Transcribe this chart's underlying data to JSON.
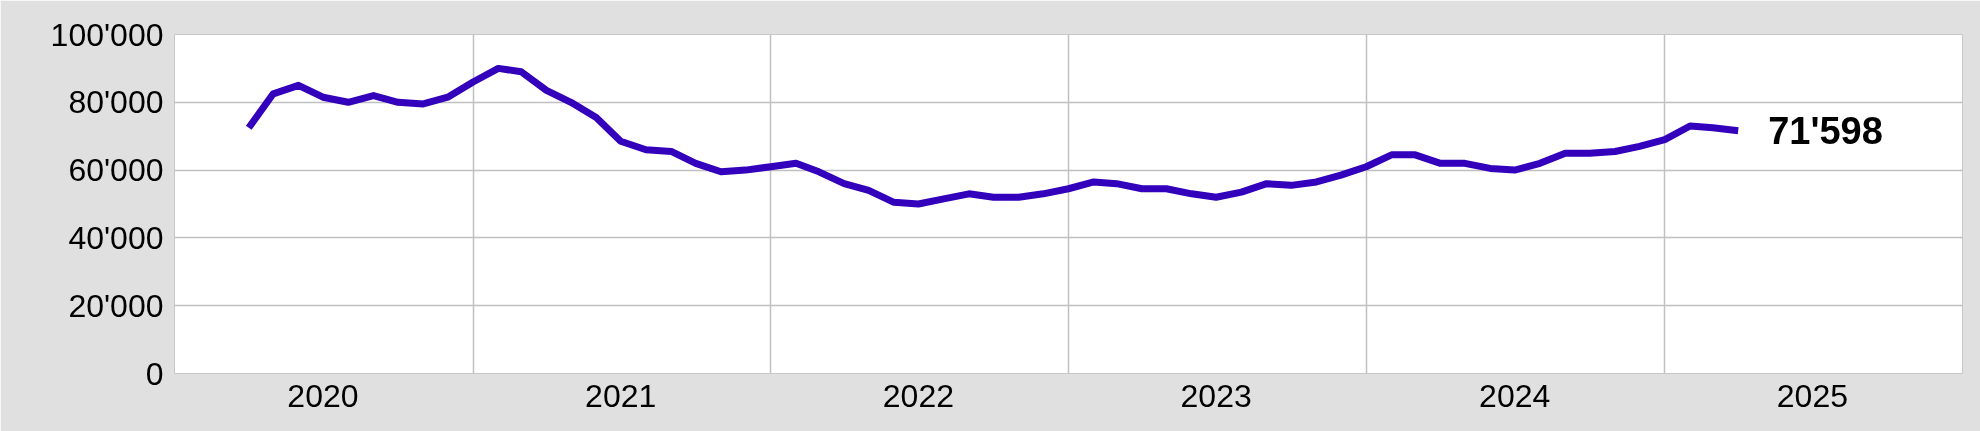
{
  "chart_data": {
    "type": "line",
    "x": [
      "2020-04",
      "2020-05",
      "2020-06",
      "2020-07",
      "2020-08",
      "2020-09",
      "2020-10",
      "2020-11",
      "2020-12",
      "2021-01",
      "2021-02",
      "2021-03",
      "2021-04",
      "2021-05",
      "2021-06",
      "2021-07",
      "2021-08",
      "2021-09",
      "2021-10",
      "2021-11",
      "2021-12",
      "2022-01",
      "2022-02",
      "2022-03",
      "2022-04",
      "2022-05",
      "2022-06",
      "2022-07",
      "2022-08",
      "2022-09",
      "2022-10",
      "2022-11",
      "2022-12",
      "2023-01",
      "2023-02",
      "2023-03",
      "2023-04",
      "2023-05",
      "2023-06",
      "2023-07",
      "2023-08",
      "2023-09",
      "2023-10",
      "2023-11",
      "2023-12",
      "2024-01",
      "2024-02",
      "2024-03",
      "2024-04",
      "2024-05",
      "2024-06",
      "2024-07",
      "2024-08",
      "2024-09",
      "2024-10",
      "2024-11",
      "2024-12",
      "2025-01",
      "2025-02",
      "2025-03",
      "2025-04"
    ],
    "series": [
      {
        "color": "#3300bb",
        "values": [
          72500,
          82500,
          85000,
          81500,
          80000,
          82000,
          80000,
          79500,
          81500,
          86000,
          90000,
          89000,
          83500,
          80000,
          75500,
          68500,
          66000,
          65500,
          62000,
          59500,
          60000,
          61000,
          62000,
          59500,
          56000,
          54000,
          50500,
          50000,
          51500,
          53000,
          52000,
          52000,
          53000,
          54500,
          56500,
          56000,
          54500,
          54500,
          53000,
          52000,
          53500,
          56000,
          55500,
          56500,
          58500,
          61000,
          64500,
          64500,
          62000,
          62000,
          60500,
          60000,
          62000,
          65000,
          65000,
          65500,
          67000,
          69000,
          73000,
          72500,
          71598
        ],
        "value_labels": [
          null,
          null,
          null,
          null,
          null,
          null,
          null,
          null,
          null,
          null,
          null,
          null,
          null,
          null,
          null,
          null,
          null,
          null,
          null,
          null,
          null,
          null,
          null,
          null,
          null,
          null,
          null,
          null,
          null,
          null,
          null,
          null,
          null,
          null,
          null,
          null,
          null,
          null,
          null,
          null,
          null,
          null,
          null,
          null,
          null,
          null,
          null,
          null,
          null,
          null,
          null,
          null,
          null,
          null,
          null,
          null,
          null,
          null,
          null,
          null,
          "71'598"
        ]
      }
    ],
    "xlim": [
      "2020-01",
      "2026-01"
    ],
    "xticks": [
      {
        "value": "2021-01",
        "label": null
      },
      {
        "value": "2022-01",
        "label": null
      },
      {
        "value": "2023-01",
        "label": null
      },
      {
        "value": "2024-01",
        "label": null
      },
      {
        "value": "2025-01",
        "label": null
      },
      {
        "value": "2020-07-01",
        "label": "2020"
      },
      {
        "value": "2021-07-01",
        "label": "2021"
      },
      {
        "value": "2022-07-01",
        "label": "2022"
      },
      {
        "value": "2023-07-01",
        "label": "2023"
      },
      {
        "value": "2024-07-01",
        "label": "2024"
      },
      {
        "value": "2025-07-01",
        "label": "2025"
      }
    ],
    "ylim": [
      0,
      100000
    ],
    "yticks": [
      {
        "value": 0,
        "label": "0"
      },
      {
        "value": 20000,
        "label": "20'000"
      },
      {
        "value": 40000,
        "label": "40'000"
      },
      {
        "value": 60000,
        "label": "60'000"
      },
      {
        "value": 80000,
        "label": "80'000"
      },
      {
        "value": 100000,
        "label": "100'000"
      }
    ],
    "grid": true,
    "marker": "none",
    "line_style": "solid"
  }
}
